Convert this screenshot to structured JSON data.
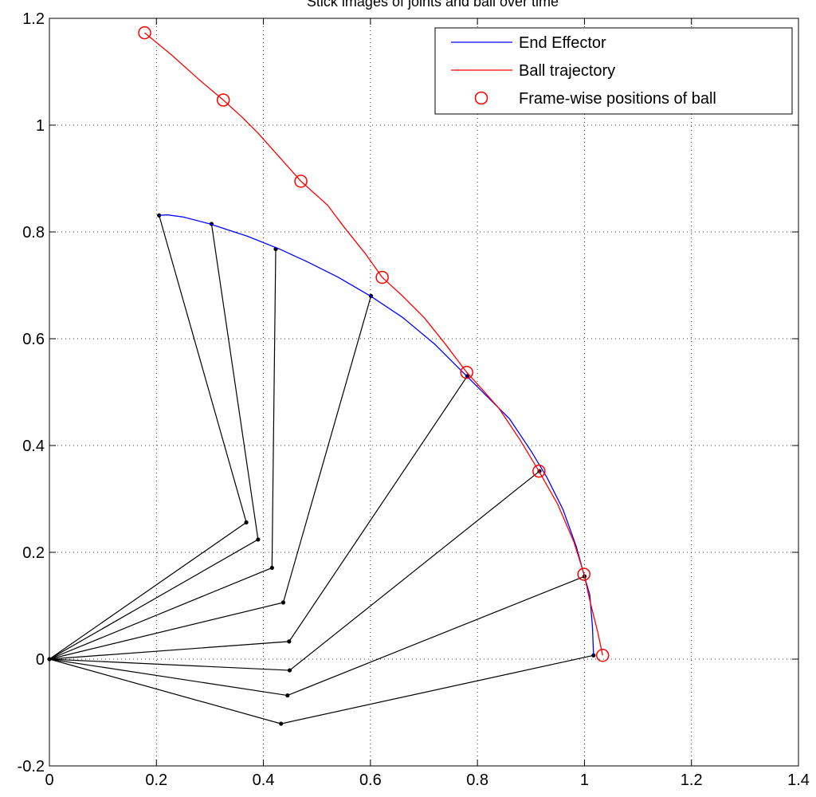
{
  "chart_data": {
    "type": "line",
    "title": "Stick images of joints and ball over time",
    "xlabel": "",
    "ylabel": "",
    "xlim": [
      0,
      1.4
    ],
    "ylim": [
      -0.2,
      1.2
    ],
    "xticks": [
      0,
      0.2,
      0.4,
      0.6,
      0.8,
      1,
      1.2,
      1.4
    ],
    "yticks": [
      -0.2,
      0,
      0.2,
      0.4,
      0.6,
      0.8,
      1,
      1.2
    ],
    "xtick_labels": [
      "0",
      "0.2",
      "0.4",
      "0.6",
      "0.8",
      "1",
      "1.2",
      "1.4"
    ],
    "ytick_labels": [
      "-0.2",
      "0",
      "0.2",
      "0.4",
      "0.6",
      "0.8",
      "1",
      "1.2"
    ],
    "grid": true,
    "legend_position": "top-right",
    "legend": [
      "End Effector",
      "Ball trajectory",
      "Frame-wise positions of ball"
    ],
    "series": [
      {
        "name": "End Effector",
        "color": "#0000ff",
        "x": [
          1.017,
          1.015,
          1.01,
          1.0,
          0.985,
          0.96,
          0.93,
          0.9,
          0.86,
          0.82,
          0.78,
          0.72,
          0.66,
          0.6,
          0.54,
          0.48,
          0.43,
          0.37,
          0.3,
          0.25,
          0.22,
          0.205
        ],
        "y": [
          0.007,
          0.06,
          0.12,
          0.155,
          0.21,
          0.28,
          0.34,
          0.39,
          0.45,
          0.49,
          0.53,
          0.59,
          0.64,
          0.68,
          0.715,
          0.745,
          0.768,
          0.792,
          0.815,
          0.828,
          0.832,
          0.831
        ]
      },
      {
        "name": "Ball trajectory",
        "color": "#ff0000",
        "x": [
          1.034,
          1.025,
          1.01,
          0.999,
          0.98,
          0.95,
          0.915,
          0.88,
          0.84,
          0.8,
          0.78,
          0.74,
          0.7,
          0.66,
          0.622,
          0.59,
          0.55,
          0.52,
          0.47,
          0.43,
          0.39,
          0.36,
          0.325,
          0.28,
          0.23,
          0.178
        ],
        "y": [
          0.007,
          0.05,
          0.11,
          0.16,
          0.22,
          0.29,
          0.352,
          0.41,
          0.47,
          0.515,
          0.537,
          0.59,
          0.64,
          0.68,
          0.715,
          0.76,
          0.81,
          0.85,
          0.895,
          0.94,
          0.985,
          1.015,
          1.047,
          1.085,
          1.13,
          1.173
        ]
      },
      {
        "name": "Frame-wise positions of ball",
        "color": "#ff0000",
        "marker": "circle",
        "x": [
          1.034,
          0.999,
          0.915,
          0.78,
          0.622,
          0.47,
          0.325,
          0.178
        ],
        "y": [
          0.007,
          0.159,
          0.352,
          0.537,
          0.715,
          0.895,
          1.047,
          1.173
        ]
      }
    ],
    "arm_frames": [
      {
        "elbow": [
          0.433,
          -0.121
        ],
        "end": [
          1.017,
          0.007
        ]
      },
      {
        "elbow": [
          0.445,
          -0.068
        ],
        "end": [
          1.0,
          0.155
        ]
      },
      {
        "elbow": [
          0.449,
          -0.021
        ],
        "end": [
          0.916,
          0.352
        ]
      },
      {
        "elbow": [
          0.448,
          0.033
        ],
        "end": [
          0.781,
          0.53
        ]
      },
      {
        "elbow": [
          0.437,
          0.106
        ],
        "end": [
          0.601,
          0.68
        ]
      },
      {
        "elbow": [
          0.416,
          0.171
        ],
        "end": [
          0.423,
          0.768
        ]
      },
      {
        "elbow": [
          0.39,
          0.224
        ],
        "end": [
          0.303,
          0.815
        ]
      },
      {
        "elbow": [
          0.368,
          0.256
        ],
        "end": [
          0.205,
          0.831
        ]
      }
    ],
    "base": [
      0,
      0
    ]
  }
}
